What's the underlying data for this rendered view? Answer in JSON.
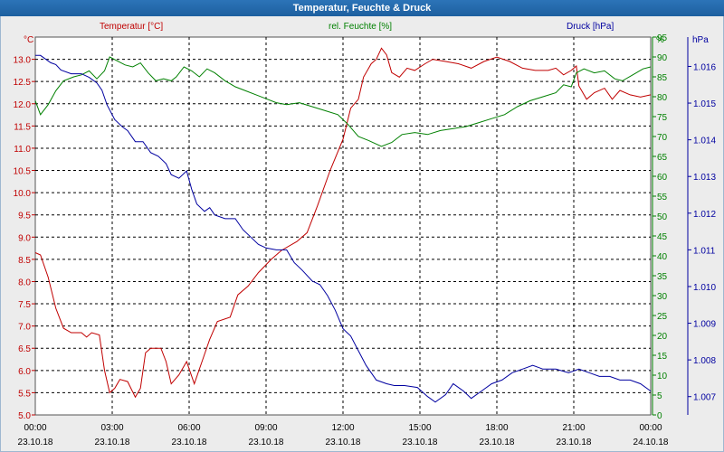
{
  "window": {
    "title": "Temperatur, Feuchte & Druck"
  },
  "chart_data": {
    "type": "line",
    "title": "Temperatur, Feuchte & Druck",
    "x_ticks": [
      {
        "time": "00:00",
        "date": "23.10.18"
      },
      {
        "time": "03:00",
        "date": "23.10.18"
      },
      {
        "time": "06:00",
        "date": "23.10.18"
      },
      {
        "time": "09:00",
        "date": "23.10.18"
      },
      {
        "time": "12:00",
        "date": "23.10.18"
      },
      {
        "time": "15:00",
        "date": "23.10.18"
      },
      {
        "time": "18:00",
        "date": "23.10.18"
      },
      {
        "time": "21:00",
        "date": "23.10.18"
      },
      {
        "time": "00:00",
        "date": "24.10.18"
      }
    ],
    "x_hours": [
      0,
      24
    ],
    "axes": {
      "temperature": {
        "label": "Temperatur [°C]",
        "unit": "°C",
        "range": [
          5.0,
          13.5
        ],
        "color": "#c00000",
        "ticks": [
          "5.0",
          "5.5",
          "6.0",
          "6.5",
          "7.0",
          "7.5",
          "8.0",
          "8.5",
          "9.0",
          "9.5",
          "10.0",
          "10.5",
          "11.0",
          "11.5",
          "12.0",
          "12.5",
          "13.0"
        ]
      },
      "humidity": {
        "label": "rel. Feuchte [%]",
        "unit": "%",
        "range": [
          0,
          95
        ],
        "color": "#008000",
        "ticks": [
          "0",
          "5",
          "10",
          "15",
          "20",
          "25",
          "30",
          "35",
          "40",
          "45",
          "50",
          "55",
          "60",
          "65",
          "70",
          "75",
          "80",
          "85",
          "90",
          "95"
        ]
      },
      "pressure": {
        "label": "Druck [hPa]",
        "unit": "hPa",
        "range": [
          1006.5,
          1016.8
        ],
        "color": "#0000a0",
        "ticks": [
          "1.007",
          "1.008",
          "1.009",
          "1.010",
          "1.011",
          "1.012",
          "1.013",
          "1.014",
          "1.015",
          "1.016"
        ]
      }
    },
    "series": [
      {
        "name": "Temperatur",
        "axis": "temperature",
        "color": "#c00000",
        "points": [
          [
            0,
            8.65
          ],
          [
            0.2,
            8.6
          ],
          [
            0.5,
            8.1
          ],
          [
            0.8,
            7.4
          ],
          [
            1.1,
            6.95
          ],
          [
            1.4,
            6.85
          ],
          [
            1.8,
            6.85
          ],
          [
            2.0,
            6.75
          ],
          [
            2.2,
            6.85
          ],
          [
            2.5,
            6.8
          ],
          [
            2.7,
            6.0
          ],
          [
            2.9,
            5.5
          ],
          [
            3.1,
            5.6
          ],
          [
            3.3,
            5.8
          ],
          [
            3.6,
            5.75
          ],
          [
            3.9,
            5.4
          ],
          [
            4.1,
            5.6
          ],
          [
            4.3,
            6.4
          ],
          [
            4.5,
            6.5
          ],
          [
            4.9,
            6.5
          ],
          [
            5.1,
            6.2
          ],
          [
            5.3,
            5.7
          ],
          [
            5.6,
            5.9
          ],
          [
            5.9,
            6.2
          ],
          [
            6.2,
            5.7
          ],
          [
            6.5,
            6.2
          ],
          [
            6.8,
            6.7
          ],
          [
            7.1,
            7.1
          ],
          [
            7.6,
            7.2
          ],
          [
            7.9,
            7.7
          ],
          [
            8.3,
            7.9
          ],
          [
            8.7,
            8.2
          ],
          [
            9.2,
            8.5
          ],
          [
            9.6,
            8.7
          ],
          [
            10.2,
            8.9
          ],
          [
            10.6,
            9.1
          ],
          [
            11.0,
            9.7
          ],
          [
            11.5,
            10.5
          ],
          [
            12.0,
            11.2
          ],
          [
            12.3,
            11.9
          ],
          [
            12.6,
            12.1
          ],
          [
            12.8,
            12.6
          ],
          [
            13.1,
            12.9
          ],
          [
            13.3,
            13.0
          ],
          [
            13.5,
            13.25
          ],
          [
            13.7,
            13.1
          ],
          [
            13.9,
            12.7
          ],
          [
            14.2,
            12.6
          ],
          [
            14.5,
            12.8
          ],
          [
            14.8,
            12.75
          ],
          [
            15.2,
            12.9
          ],
          [
            15.5,
            13.0
          ],
          [
            16.0,
            12.95
          ],
          [
            16.5,
            12.9
          ],
          [
            17.0,
            12.8
          ],
          [
            17.5,
            12.95
          ],
          [
            18.0,
            13.05
          ],
          [
            18.5,
            12.95
          ],
          [
            19.0,
            12.8
          ],
          [
            19.5,
            12.75
          ],
          [
            20.0,
            12.75
          ],
          [
            20.3,
            12.8
          ],
          [
            20.6,
            12.65
          ],
          [
            20.9,
            12.75
          ],
          [
            21.1,
            12.85
          ],
          [
            21.2,
            12.4
          ],
          [
            21.5,
            12.1
          ],
          [
            21.8,
            12.25
          ],
          [
            22.2,
            12.35
          ],
          [
            22.5,
            12.1
          ],
          [
            22.8,
            12.3
          ],
          [
            23.2,
            12.2
          ],
          [
            23.6,
            12.15
          ],
          [
            24,
            12.2
          ]
        ]
      },
      {
        "name": "rel. Feuchte",
        "axis": "humidity",
        "color": "#008000",
        "points": [
          [
            0,
            79
          ],
          [
            0.2,
            75.5
          ],
          [
            0.5,
            78
          ],
          [
            0.8,
            81.5
          ],
          [
            1.1,
            84
          ],
          [
            1.5,
            85
          ],
          [
            1.8,
            85.5
          ],
          [
            2.1,
            86.5
          ],
          [
            2.4,
            84.5
          ],
          [
            2.7,
            86.5
          ],
          [
            2.9,
            90
          ],
          [
            3.2,
            89
          ],
          [
            3.5,
            88
          ],
          [
            3.8,
            87.5
          ],
          [
            4.1,
            88.5
          ],
          [
            4.4,
            86
          ],
          [
            4.7,
            84
          ],
          [
            5.0,
            84.5
          ],
          [
            5.3,
            84
          ],
          [
            5.5,
            85
          ],
          [
            5.8,
            87.5
          ],
          [
            6.1,
            86.5
          ],
          [
            6.4,
            85
          ],
          [
            6.7,
            87
          ],
          [
            7.0,
            86
          ],
          [
            7.4,
            84
          ],
          [
            7.8,
            82.5
          ],
          [
            8.2,
            81.5
          ],
          [
            8.6,
            80.5
          ],
          [
            9.0,
            79.5
          ],
          [
            9.4,
            78.5
          ],
          [
            9.8,
            78
          ],
          [
            10.3,
            78.5
          ],
          [
            10.8,
            77.5
          ],
          [
            11.3,
            76.5
          ],
          [
            11.8,
            75.5
          ],
          [
            12.2,
            73
          ],
          [
            12.6,
            70
          ],
          [
            13.0,
            69
          ],
          [
            13.5,
            67.5
          ],
          [
            13.9,
            68.5
          ],
          [
            14.3,
            70.5
          ],
          [
            14.8,
            71
          ],
          [
            15.3,
            70.5
          ],
          [
            15.8,
            71.5
          ],
          [
            16.3,
            72
          ],
          [
            16.8,
            72.5
          ],
          [
            17.3,
            73.5
          ],
          [
            17.8,
            74.5
          ],
          [
            18.3,
            75.5
          ],
          [
            18.8,
            77.5
          ],
          [
            19.3,
            79
          ],
          [
            19.8,
            80
          ],
          [
            20.3,
            81
          ],
          [
            20.6,
            83
          ],
          [
            20.9,
            82.5
          ],
          [
            21.1,
            86
          ],
          [
            21.4,
            87
          ],
          [
            21.8,
            86
          ],
          [
            22.2,
            86.5
          ],
          [
            22.6,
            84.5
          ],
          [
            22.9,
            84
          ],
          [
            23.3,
            85.5
          ],
          [
            23.7,
            87
          ],
          [
            24,
            87.5
          ]
        ]
      },
      {
        "name": "Druck",
        "axis": "pressure",
        "color": "#0000a0",
        "points": [
          [
            0,
            1016.3
          ],
          [
            0.2,
            1016.3
          ],
          [
            0.6,
            1016.1
          ],
          [
            0.8,
            1016.05
          ],
          [
            1.0,
            1015.9
          ],
          [
            1.4,
            1015.8
          ],
          [
            1.8,
            1015.8
          ],
          [
            2.1,
            1015.7
          ],
          [
            2.4,
            1015.55
          ],
          [
            2.6,
            1015.35
          ],
          [
            2.8,
            1014.95
          ],
          [
            3.1,
            1014.55
          ],
          [
            3.4,
            1014.35
          ],
          [
            3.6,
            1014.25
          ],
          [
            3.9,
            1013.95
          ],
          [
            4.2,
            1013.95
          ],
          [
            4.5,
            1013.65
          ],
          [
            4.8,
            1013.55
          ],
          [
            5.1,
            1013.35
          ],
          [
            5.3,
            1013.05
          ],
          [
            5.6,
            1012.95
          ],
          [
            5.9,
            1013.15
          ],
          [
            6.1,
            1012.65
          ],
          [
            6.3,
            1012.25
          ],
          [
            6.6,
            1012.05
          ],
          [
            6.8,
            1012.15
          ],
          [
            7.0,
            1011.95
          ],
          [
            7.4,
            1011.85
          ],
          [
            7.8,
            1011.85
          ],
          [
            8.1,
            1011.55
          ],
          [
            8.4,
            1011.35
          ],
          [
            8.7,
            1011.15
          ],
          [
            9.0,
            1011.05
          ],
          [
            9.4,
            1011.0
          ],
          [
            9.8,
            1011.0
          ],
          [
            10.1,
            1010.65
          ],
          [
            10.4,
            1010.45
          ],
          [
            10.8,
            1010.15
          ],
          [
            11.1,
            1010.05
          ],
          [
            11.4,
            1009.75
          ],
          [
            11.7,
            1009.35
          ],
          [
            12.0,
            1008.85
          ],
          [
            12.3,
            1008.65
          ],
          [
            12.6,
            1008.25
          ],
          [
            12.9,
            1007.85
          ],
          [
            13.3,
            1007.45
          ],
          [
            13.7,
            1007.35
          ],
          [
            14.0,
            1007.3
          ],
          [
            14.4,
            1007.3
          ],
          [
            14.9,
            1007.25
          ],
          [
            15.3,
            1007.0
          ],
          [
            15.6,
            1006.85
          ],
          [
            16.0,
            1007.05
          ],
          [
            16.3,
            1007.35
          ],
          [
            16.7,
            1007.15
          ],
          [
            17.0,
            1006.95
          ],
          [
            17.4,
            1007.15
          ],
          [
            17.8,
            1007.35
          ],
          [
            18.2,
            1007.45
          ],
          [
            18.6,
            1007.65
          ],
          [
            19.0,
            1007.75
          ],
          [
            19.4,
            1007.85
          ],
          [
            19.8,
            1007.75
          ],
          [
            20.3,
            1007.75
          ],
          [
            20.8,
            1007.65
          ],
          [
            21.2,
            1007.75
          ],
          [
            21.6,
            1007.65
          ],
          [
            22.0,
            1007.55
          ],
          [
            22.4,
            1007.55
          ],
          [
            22.8,
            1007.45
          ],
          [
            23.2,
            1007.45
          ],
          [
            23.6,
            1007.35
          ],
          [
            24,
            1007.15
          ]
        ]
      }
    ]
  }
}
